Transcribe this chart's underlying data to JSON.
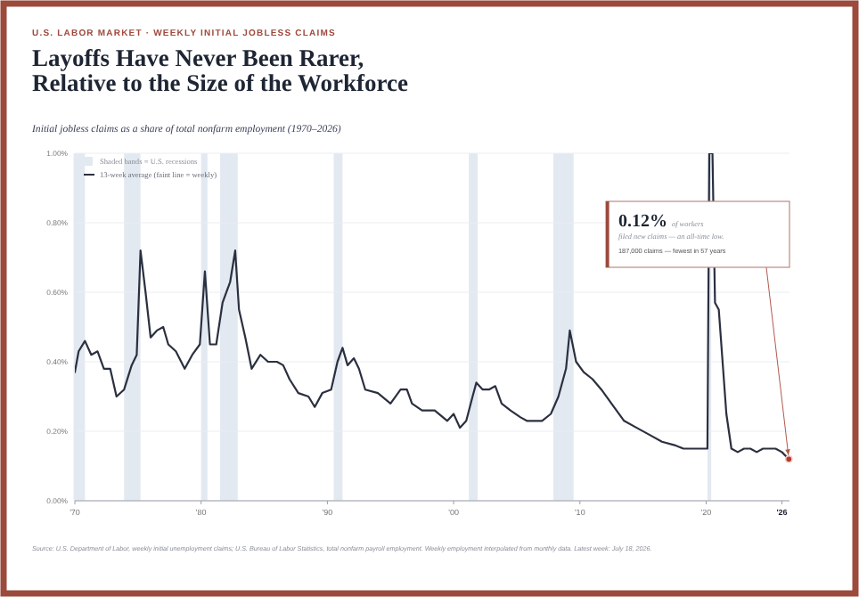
{
  "chart_data": {
    "type": "line",
    "title": "Layoffs Have Never Been Rarer, Relative to the Size of the Workforce",
    "subtitle": "Initial jobless claims as a share of total nonfarm employment  (1970–2026)",
    "annotations": [
      "U.S. LABOR MARKET · WEEKLY INITIAL JOBLESS CLAIMS",
      "0.12% of workers filed new claims — an all-time low.",
      "187,000 claims — fewest in 57 years",
      "Source: U.S. Department of Labor, weekly initial unemployment claims; U.S. Bureau of Labor Statistics, total nonfarm payroll employment. Weekly employment interpolated from monthly data. Latest week: July 18, 2026."
    ],
    "xlim": [
      1970,
      2026.6
    ],
    "xticks": [
      {
        "value": 1970,
        "label": "'70"
      },
      {
        "value": 1980,
        "label": "'80"
      },
      {
        "value": 1990,
        "label": "'90"
      },
      {
        "value": 2000,
        "label": "'00"
      },
      {
        "value": 2010,
        "label": "'10"
      },
      {
        "value": 2020,
        "label": "'20"
      },
      {
        "value": 2026,
        "label": "'26"
      }
    ],
    "ylim": [
      0,
      1
    ],
    "yticks": [
      {
        "value": 0,
        "label": "0.00%"
      },
      {
        "value": 0.2,
        "label": "0.20%"
      },
      {
        "value": 0.4,
        "label": "0.40%"
      },
      {
        "value": 0.6,
        "label": "0.60%"
      },
      {
        "value": 0.8,
        "label": "0.80%"
      },
      {
        "value": 1,
        "label": "1.00%"
      }
    ],
    "grid": "y",
    "legend": "top left",
    "marker": "none",
    "line_style": "solid",
    "bands": [
      {
        "axis": "x",
        "from": 1969.9,
        "to": 1970.8,
        "color": "#e3e9f1",
        "label": "Shaded bands = U.S. recessions"
      },
      {
        "axis": "x",
        "from": 1973.9,
        "to": 1975.2,
        "color": "#e3e9f1"
      },
      {
        "axis": "x",
        "from": 1980.0,
        "to": 1980.5,
        "color": "#e3e9f1"
      },
      {
        "axis": "x",
        "from": 1981.5,
        "to": 1982.9,
        "color": "#e3e9f1"
      },
      {
        "axis": "x",
        "from": 1990.5,
        "to": 1991.2,
        "color": "#e3e9f1"
      },
      {
        "axis": "x",
        "from": 2001.2,
        "to": 2001.9,
        "color": "#e3e9f1"
      },
      {
        "axis": "x",
        "from": 2007.9,
        "to": 2009.5,
        "color": "#e3e9f1"
      },
      {
        "axis": "x",
        "from": 2020.1,
        "to": 2020.4,
        "color": "#e3e9f1"
      }
    ],
    "series": [
      {
        "name": "13-week average (faint line = weekly)",
        "color": "#2b3040",
        "x": [
          1970.0,
          1970.3,
          1970.8,
          1971.3,
          1971.8,
          1972.3,
          1972.8,
          1973.3,
          1973.9,
          1974.5,
          1974.9,
          1975.2,
          1975.6,
          1976.0,
          1976.5,
          1977.0,
          1977.4,
          1978.0,
          1978.7,
          1979.3,
          1979.9,
          1980.3,
          1980.7,
          1981.2,
          1981.7,
          1982.3,
          1982.7,
          1983.0,
          1983.5,
          1984.0,
          1984.7,
          1985.3,
          1986.0,
          1986.5,
          1987.0,
          1987.7,
          1988.5,
          1989.0,
          1989.6,
          1990.3,
          1990.8,
          1991.2,
          1991.6,
          1992.1,
          1992.5,
          1993.0,
          1994.0,
          1995.0,
          1995.8,
          1996.3,
          1996.7,
          1997.5,
          1998.5,
          1999.5,
          2000.0,
          2000.5,
          2001.0,
          2001.5,
          2001.8,
          2002.3,
          2002.8,
          2003.3,
          2003.8,
          2004.5,
          2005.3,
          2005.8,
          2006.3,
          2007.0,
          2007.7,
          2008.3,
          2008.9,
          2009.2,
          2009.7,
          2010.3,
          2011.0,
          2011.7,
          2012.5,
          2013.5,
          2014.5,
          2015.5,
          2016.5,
          2017.5,
          2018.2,
          2019.0,
          2019.8,
          2020.1,
          2020.25,
          2020.5,
          2020.7,
          2021.0,
          2021.6,
          2022.0,
          2022.5,
          2023.0,
          2023.5,
          2024.0,
          2024.5,
          2025.0,
          2025.5,
          2026.0,
          2026.55
        ],
        "values": [
          0.37,
          0.43,
          0.46,
          0.42,
          0.43,
          0.38,
          0.38,
          0.3,
          0.32,
          0.39,
          0.42,
          0.72,
          0.6,
          0.47,
          0.49,
          0.5,
          0.45,
          0.43,
          0.38,
          0.42,
          0.45,
          0.66,
          0.45,
          0.45,
          0.57,
          0.63,
          0.72,
          0.55,
          0.47,
          0.38,
          0.42,
          0.4,
          0.4,
          0.39,
          0.35,
          0.31,
          0.3,
          0.27,
          0.31,
          0.32,
          0.4,
          0.44,
          0.39,
          0.41,
          0.38,
          0.32,
          0.31,
          0.28,
          0.32,
          0.32,
          0.28,
          0.26,
          0.26,
          0.23,
          0.25,
          0.21,
          0.23,
          0.3,
          0.34,
          0.32,
          0.32,
          0.33,
          0.28,
          0.26,
          0.24,
          0.23,
          0.23,
          0.23,
          0.25,
          0.3,
          0.38,
          0.49,
          0.4,
          0.37,
          0.35,
          0.32,
          0.28,
          0.23,
          0.21,
          0.19,
          0.17,
          0.16,
          0.15,
          0.15,
          0.15,
          0.15,
          1.0,
          1.0,
          0.57,
          0.55,
          0.25,
          0.15,
          0.14,
          0.15,
          0.15,
          0.14,
          0.15,
          0.15,
          0.15,
          0.14,
          0.12
        ]
      }
    ]
  }
}
